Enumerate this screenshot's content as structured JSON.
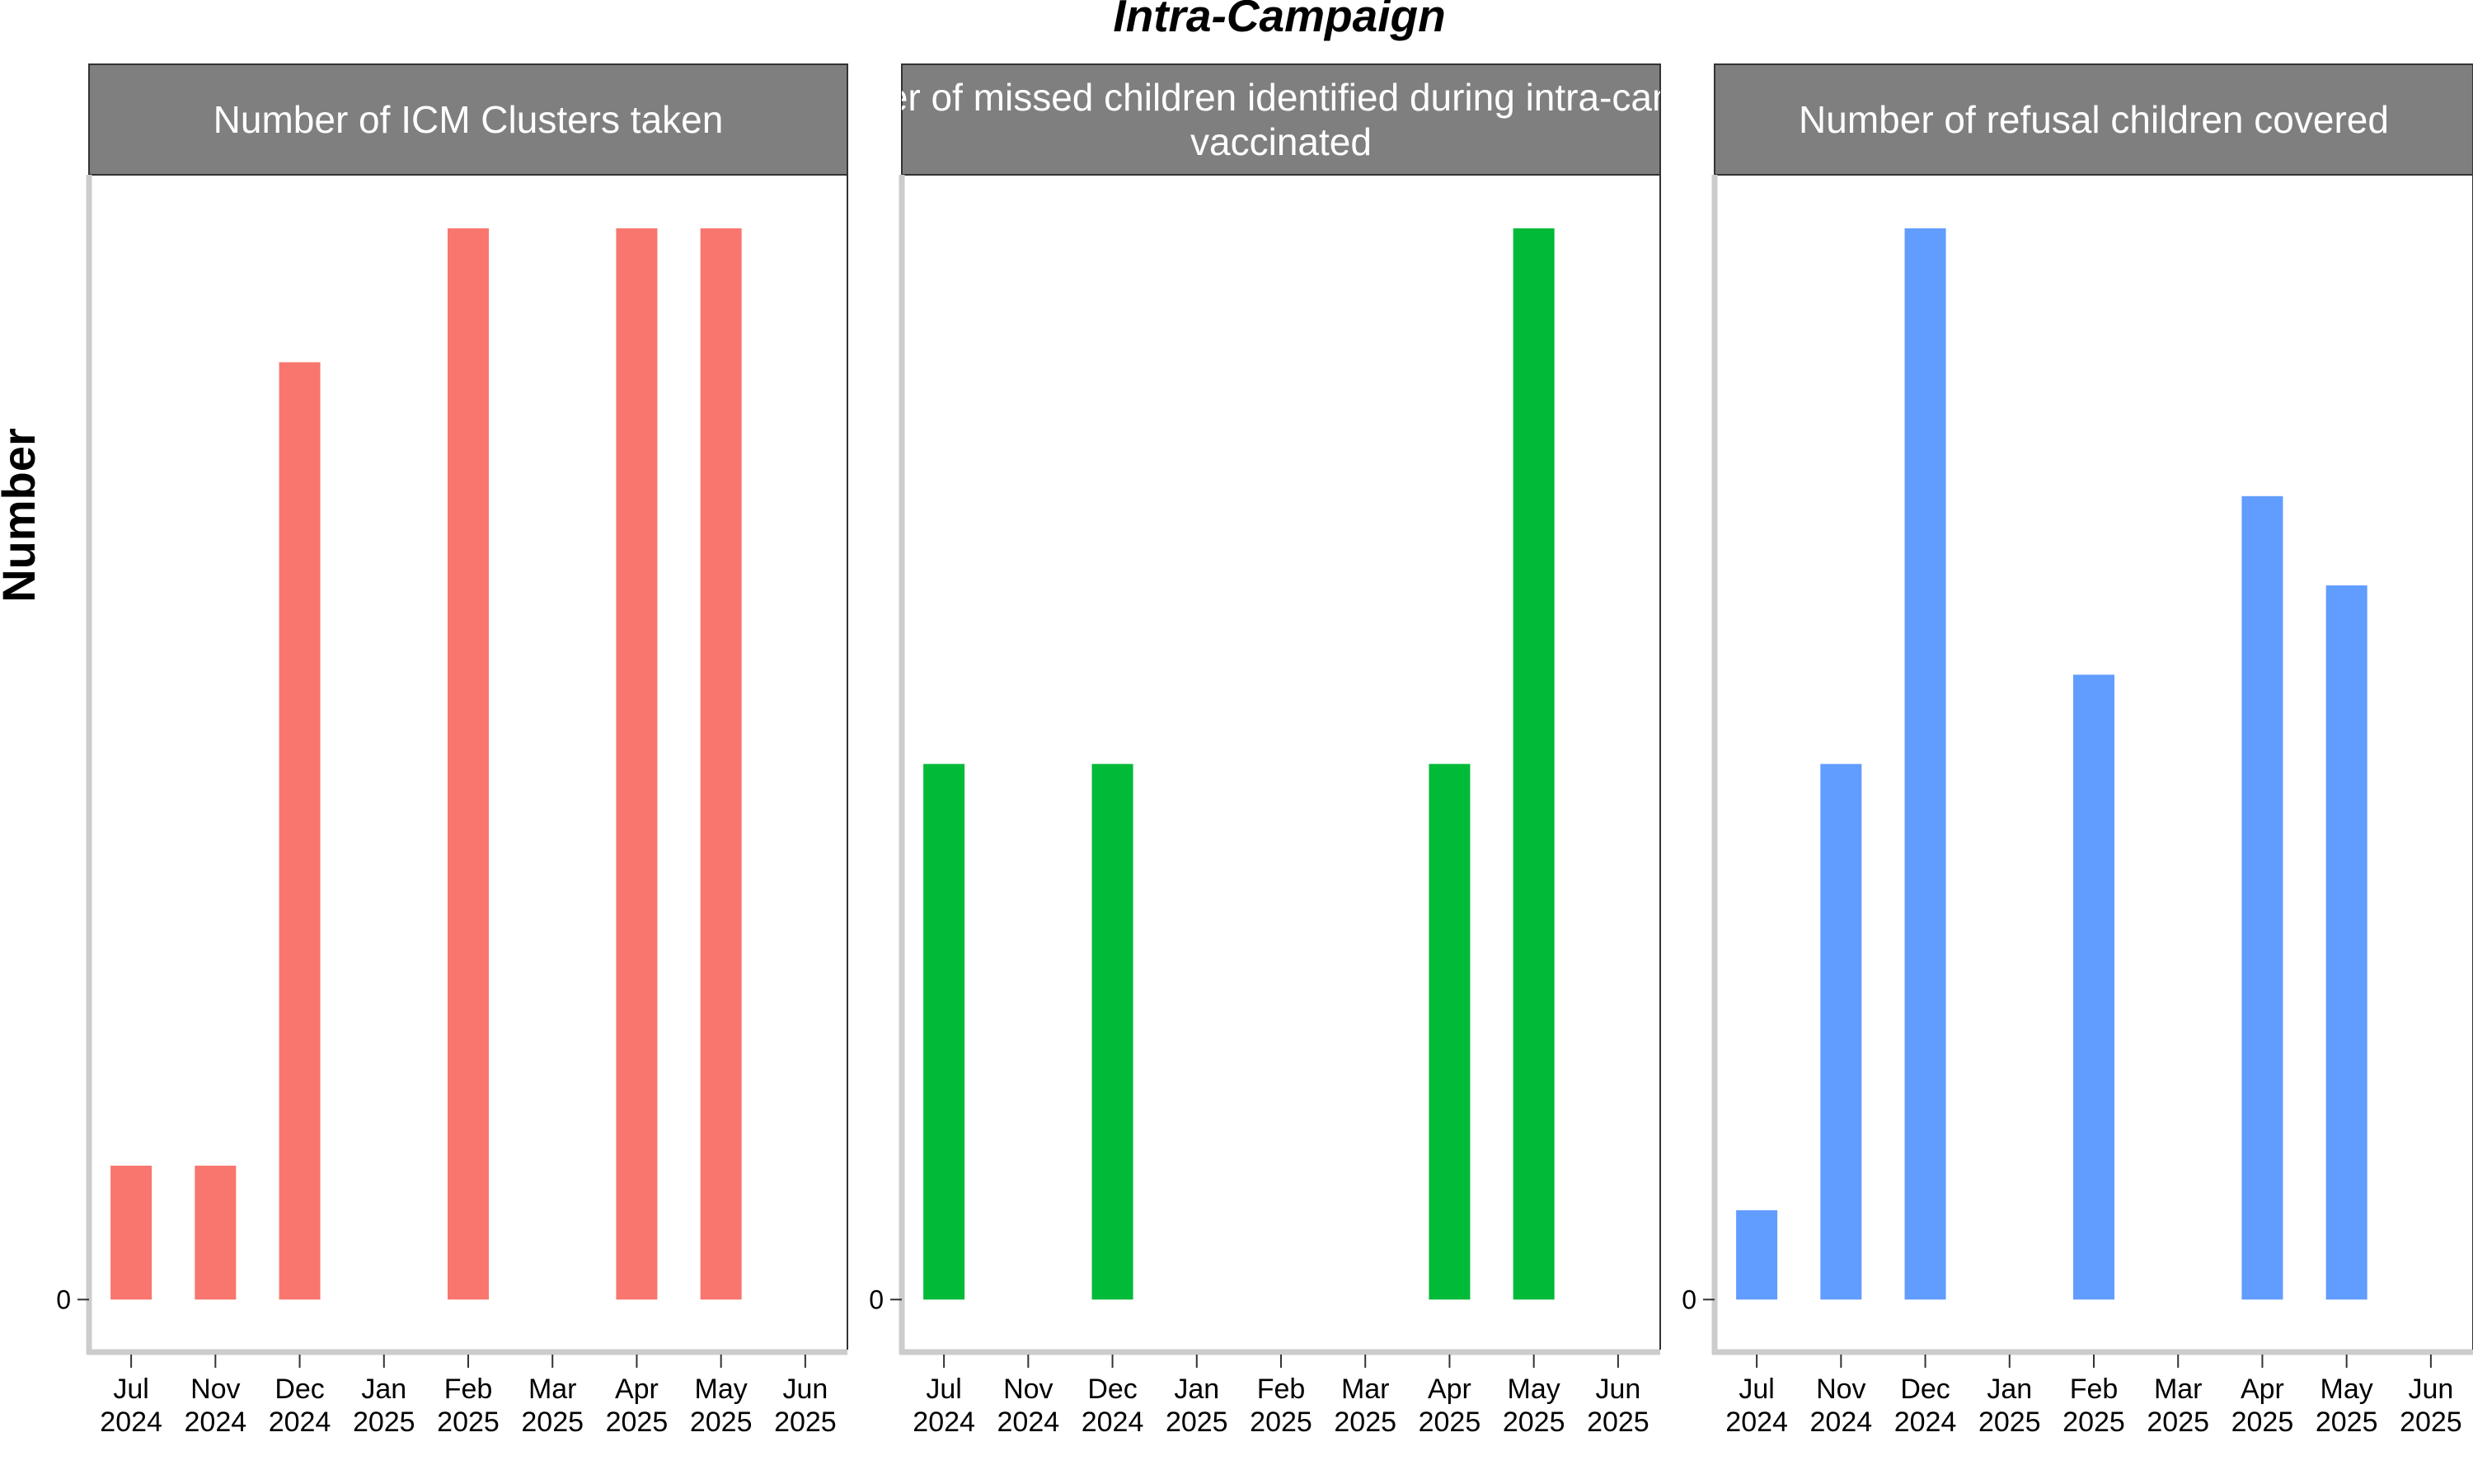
{
  "chart_data": {
    "type": "bar",
    "title": "Intra-Campaign",
    "ylabel": "Number",
    "xlabel": "",
    "y_tick_labels": [
      "0"
    ],
    "categories": [
      [
        "Jul",
        "2024"
      ],
      [
        "Nov",
        "2024"
      ],
      [
        "Dec",
        "2024"
      ],
      [
        "Jan",
        "2025"
      ],
      [
        "Feb",
        "2025"
      ],
      [
        "Mar",
        "2025"
      ],
      [
        "Apr",
        "2025"
      ],
      [
        "May",
        "2025"
      ],
      [
        "Jun",
        "2025"
      ]
    ],
    "grid": false,
    "legend": "none",
    "panels": [
      {
        "strip_lines": [
          "Number of ICM Clusters taken"
        ],
        "color": "#F8766D",
        "values": [
          1,
          1,
          7,
          0,
          8,
          0,
          8,
          8,
          0
        ],
        "ylim": [
          -0.38,
          8.4
        ]
      },
      {
        "strip_lines": [
          "Number of missed children identified during intra-campaign",
          "vaccinated"
        ],
        "color": "#00BA38",
        "values": [
          6,
          0,
          6,
          0,
          0,
          0,
          6,
          12,
          0
        ],
        "ylim": [
          -0.57,
          12.6
        ]
      },
      {
        "strip_lines": [
          "Number of refusal children covered"
        ],
        "color": "#619CFF",
        "values": [
          1,
          6,
          12,
          0,
          7,
          0,
          9,
          8,
          0
        ],
        "ylim": [
          -0.57,
          12.6
        ]
      }
    ]
  }
}
